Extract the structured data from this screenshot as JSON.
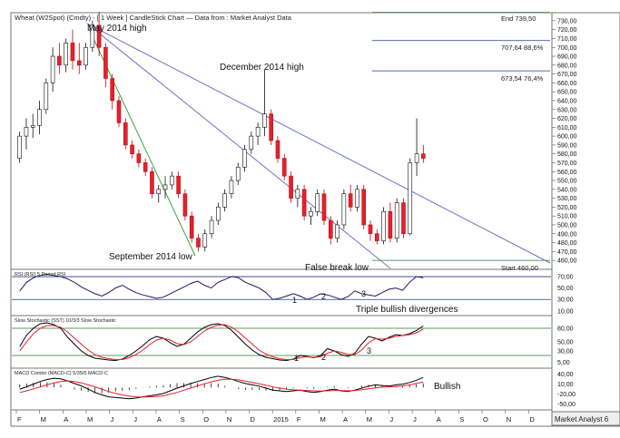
{
  "header": {
    "title": "Wheat (W2Spot) (Cmdty) -  [ 1 Week ] CandleStick Chart — Data from : Market Analyst Data"
  },
  "footer": {
    "brand": "Market Analyst 6"
  },
  "chart_data": [
    {
      "type": "candlestick",
      "title": "Wheat (W2Spot) (Cmdty) -  [ 1 Week ] CandleStick Chart — Data from : Market Analyst Data",
      "x_tick_labels": [
        "F",
        "M",
        "A",
        "M",
        "J",
        "J",
        "A",
        "S",
        "O",
        "N",
        "D",
        "2015",
        "F",
        "M",
        "A",
        "M",
        "J",
        "J",
        "A",
        "S",
        "O",
        "N",
        "D"
      ],
      "y_tick_labels": [
        "460,00",
        "470,00",
        "480,00",
        "490,00",
        "500,00",
        "510,00",
        "520,00",
        "530,00",
        "540,00",
        "550,00",
        "560,00",
        "570,00",
        "580,00",
        "590,00",
        "600,00",
        "610,00",
        "620,00",
        "630,00",
        "640,00",
        "650,00",
        "660,00",
        "670,00",
        "680,00",
        "690,00",
        "700,00",
        "710,00",
        "720,00",
        "730,00"
      ],
      "ylim": [
        455,
        735
      ],
      "candles": [
        [
          575,
          605,
          570,
          600
        ],
        [
          600,
          620,
          585,
          610
        ],
        [
          610,
          625,
          598,
          612
        ],
        [
          612,
          640,
          602,
          630
        ],
        [
          630,
          665,
          625,
          660
        ],
        [
          660,
          700,
          650,
          690
        ],
        [
          690,
          705,
          670,
          680
        ],
        [
          680,
          710,
          672,
          705
        ],
        [
          705,
          720,
          675,
          685
        ],
        [
          685,
          705,
          670,
          680
        ],
        [
          680,
          705,
          675,
          700
        ],
        [
          700,
          730,
          695,
          725
        ],
        [
          725,
          740,
          690,
          700
        ],
        [
          700,
          705,
          655,
          665
        ],
        [
          665,
          670,
          630,
          640
        ],
        [
          640,
          645,
          610,
          615
        ],
        [
          615,
          620,
          585,
          590
        ],
        [
          590,
          595,
          575,
          580
        ],
        [
          580,
          585,
          565,
          570
        ],
        [
          570,
          575,
          555,
          560
        ],
        [
          560,
          565,
          530,
          535
        ],
        [
          535,
          545,
          525,
          540
        ],
        [
          540,
          555,
          530,
          545
        ],
        [
          545,
          560,
          540,
          555
        ],
        [
          555,
          560,
          530,
          535
        ],
        [
          535,
          540,
          505,
          510
        ],
        [
          510,
          515,
          480,
          485
        ],
        [
          485,
          490,
          470,
          475
        ],
        [
          475,
          495,
          470,
          490
        ],
        [
          490,
          510,
          485,
          505
        ],
        [
          505,
          525,
          500,
          520
        ],
        [
          520,
          540,
          515,
          535
        ],
        [
          535,
          555,
          530,
          550
        ],
        [
          550,
          570,
          545,
          565
        ],
        [
          565,
          590,
          560,
          585
        ],
        [
          585,
          605,
          580,
          600
        ],
        [
          600,
          615,
          590,
          610
        ],
        [
          610,
          675,
          600,
          625
        ],
        [
          625,
          630,
          590,
          595
        ],
        [
          595,
          600,
          570,
          575
        ],
        [
          575,
          580,
          550,
          555
        ],
        [
          555,
          560,
          525,
          530
        ],
        [
          530,
          545,
          520,
          540
        ],
        [
          540,
          545,
          505,
          510
        ],
        [
          510,
          520,
          500,
          515
        ],
        [
          515,
          540,
          510,
          535
        ],
        [
          535,
          540,
          500,
          505
        ],
        [
          505,
          510,
          478,
          485
        ],
        [
          485,
          505,
          480,
          500
        ],
        [
          500,
          540,
          495,
          535
        ],
        [
          535,
          545,
          515,
          520
        ],
        [
          520,
          545,
          515,
          540
        ],
        [
          540,
          545,
          495,
          500
        ],
        [
          500,
          505,
          482,
          490
        ],
        [
          490,
          495,
          478,
          482
        ],
        [
          482,
          520,
          478,
          515
        ],
        [
          515,
          525,
          480,
          485
        ],
        [
          485,
          530,
          480,
          525
        ],
        [
          525,
          530,
          485,
          490
        ],
        [
          490,
          575,
          488,
          570
        ],
        [
          570,
          620,
          555,
          580
        ],
        [
          580,
          590,
          570,
          575
        ]
      ],
      "reference_levels": [
        {
          "label": "End 739,50",
          "value": 739.5
        },
        {
          "label": "707,64 88,6%",
          "value": 707.64
        },
        {
          "label": "673,54 76,4%",
          "value": 673.54
        },
        {
          "label": "Start 460,00",
          "value": 460.0
        }
      ],
      "annotations": [
        {
          "text": "May 2014 high"
        },
        {
          "text": "December 2014 high"
        },
        {
          "text": "September 2014 low"
        },
        {
          "text": "False break low"
        }
      ],
      "colors": {
        "up_candle": "#ffffff",
        "down_candle": "#e8202a",
        "fib_line": "#2b7a2b",
        "trend_line": "#6e6ec8",
        "green_trend": "#33a033"
      }
    },
    {
      "type": "line",
      "title": "RSI (RSI) 5 Period RSI",
      "y_tick_labels": [
        "70,00",
        "50,00",
        "30,00",
        "10,00"
      ],
      "ylim": [
        5,
        78
      ],
      "reference_levels": [
        70,
        30
      ],
      "values": [
        45,
        60,
        68,
        72,
        74,
        72,
        70,
        66,
        60,
        52,
        46,
        40,
        36,
        42,
        50,
        55,
        48,
        42,
        38,
        35,
        32,
        34,
        40,
        46,
        52,
        58,
        62,
        55,
        50,
        60,
        65,
        70,
        68,
        60,
        55,
        50,
        42,
        30,
        32,
        36,
        40,
        36,
        30,
        34,
        40,
        38,
        34,
        30,
        35,
        45,
        40,
        38,
        36,
        42,
        48,
        50,
        46,
        60,
        70,
        68
      ],
      "annotations": [
        {
          "text": "1"
        },
        {
          "text": "2"
        },
        {
          "text": "3"
        },
        {
          "text": "Triple bullish divergences"
        }
      ]
    },
    {
      "type": "line",
      "title": "Slow Stochastic (SST) 10/3/3 Slow Stochastic",
      "y_tick_labels": [
        "80,00",
        "50,00",
        "30,00",
        "5,00"
      ],
      "ylim": [
        0,
        100
      ],
      "reference_levels": [
        80,
        20
      ],
      "series": [
        {
          "color": "#000000",
          "values": [
            40,
            65,
            80,
            90,
            92,
            88,
            80,
            60,
            45,
            30,
            20,
            14,
            12,
            10,
            9,
            12,
            20,
            30,
            42,
            55,
            62,
            58,
            48,
            40,
            45,
            58,
            72,
            82,
            88,
            90,
            86,
            75,
            60,
            45,
            32,
            22,
            16,
            13,
            10,
            9,
            12,
            20,
            18,
            15,
            20,
            35,
            30,
            22,
            18,
            25,
            45,
            62,
            58,
            52,
            60,
            66,
            64,
            68,
            75,
            85
          ]
        },
        {
          "color": "#e8202a",
          "values": [
            30,
            50,
            68,
            80,
            86,
            86,
            82,
            72,
            58,
            45,
            32,
            22,
            16,
            13,
            11,
            11,
            15,
            22,
            32,
            44,
            54,
            58,
            54,
            46,
            44,
            50,
            62,
            74,
            82,
            87,
            88,
            82,
            72,
            58,
            45,
            32,
            23,
            17,
            13,
            11,
            11,
            15,
            17,
            16,
            17,
            25,
            30,
            27,
            22,
            22,
            32,
            48,
            57,
            56,
            58,
            62,
            64,
            66,
            70,
            78
          ]
        }
      ],
      "annotations": [
        {
          "text": "1"
        },
        {
          "text": "2"
        },
        {
          "text": "3"
        }
      ]
    },
    {
      "type": "line",
      "title": "MACD Combo (MACD-C) 5/35/5 MACD-C",
      "y_tick_labels": [
        "40,00",
        "10,00",
        "-20,00",
        "-50,00"
      ],
      "ylim": [
        -62,
        50
      ],
      "series": [
        {
          "color": "#000000",
          "values": [
            -5,
            2,
            10,
            18,
            24,
            28,
            26,
            20,
            12,
            5,
            -5,
            -15,
            -22,
            -28,
            -30,
            -32,
            -34,
            -32,
            -28,
            -25,
            -22,
            -18,
            -10,
            -2,
            5,
            12,
            18,
            24,
            30,
            34,
            30,
            25,
            18,
            12,
            8,
            4,
            -2,
            -8,
            -10,
            -12,
            -10,
            -8,
            -12,
            -15,
            -12,
            -8,
            -5,
            -10,
            -12,
            -8,
            -2,
            4,
            8,
            6,
            4,
            8,
            10,
            15,
            22,
            30
          ]
        },
        {
          "color": "#e8202a",
          "values": [
            -15,
            -10,
            -4,
            2,
            8,
            14,
            18,
            20,
            18,
            14,
            8,
            2,
            -5,
            -12,
            -18,
            -22,
            -26,
            -28,
            -29,
            -28,
            -27,
            -25,
            -20,
            -15,
            -8,
            -2,
            5,
            11,
            17,
            22,
            25,
            25,
            23,
            19,
            15,
            11,
            7,
            2,
            -2,
            -5,
            -7,
            -8,
            -9,
            -10,
            -11,
            -10,
            -9,
            -9,
            -10,
            -9,
            -7,
            -4,
            -1,
            1,
            2,
            3,
            5,
            8,
            12,
            17
          ]
        }
      ],
      "annotations": [
        {
          "text": "Bullish"
        }
      ]
    }
  ]
}
